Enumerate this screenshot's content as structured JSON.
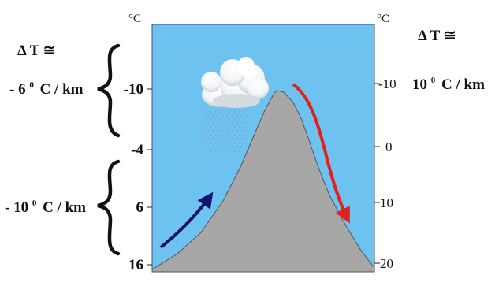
{
  "left_axis": {
    "unit": "°C",
    "ticks": [
      "-10",
      "-4",
      "6",
      "16"
    ]
  },
  "right_axis": {
    "unit": "°C",
    "ticks": [
      "-10",
      "0",
      "10",
      "20"
    ]
  },
  "lapse_rates": {
    "left_symbol": "Δ T ≅",
    "left_upper_prefix": "- 6",
    "left_upper_unit": "C / km",
    "left_lower_prefix": "- 10",
    "left_lower_unit": "C / km",
    "degree_mark": "0",
    "right_symbol": "Δ T ≅",
    "right_prefix": "10",
    "right_unit": "C / km"
  },
  "colors": {
    "sky": "#6ec2ef",
    "mountain": "#a7a7a7",
    "upslope_arrow": "#14146e",
    "downslope_arrow": "#e3201c",
    "rain": "#78a8d4",
    "cloud": "#ffffff"
  },
  "icons": {
    "cloud": "cumulus-cloud-icon",
    "rain": "rain-shower-icon"
  }
}
